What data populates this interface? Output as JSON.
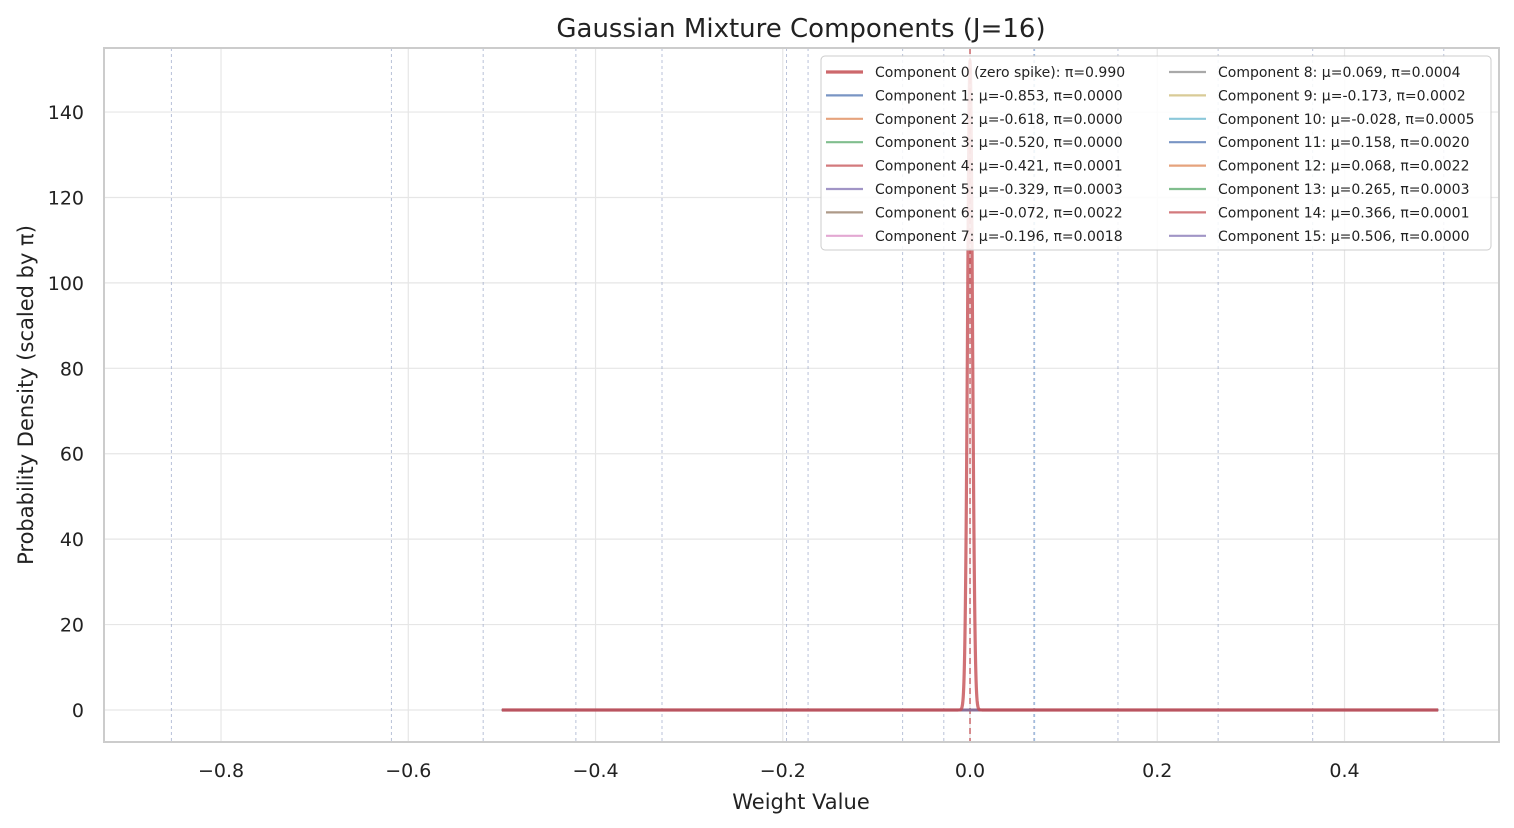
{
  "chart_data": {
    "type": "line",
    "title": "Gaussian Mixture Components (J=16)",
    "xlabel": "Weight Value",
    "ylabel": "Probability Density (scaled by π)",
    "xlim": [
      -0.925,
      0.565
    ],
    "ylim": [
      -7.5,
      155
    ],
    "x_range_plotted": [
      -0.5,
      0.5
    ],
    "x_ticks": [
      -0.8,
      -0.6,
      -0.4,
      -0.2,
      0.0,
      0.2,
      0.4
    ],
    "x_tick_labels": [
      "−0.8",
      "−0.6",
      "−0.4",
      "−0.2",
      "0.0",
      "0.2",
      "0.4"
    ],
    "y_ticks": [
      0,
      20,
      40,
      60,
      80,
      100,
      120,
      140
    ],
    "y_tick_labels": [
      "0",
      "20",
      "40",
      "60",
      "80",
      "100",
      "120",
      "140"
    ],
    "grid": true,
    "legend_position": "upper right",
    "legend_columns": 2,
    "zero_spike": {
      "mu": 0.0,
      "sigma": 0.0026,
      "peak_density": 152
    },
    "series": [
      {
        "name": "Component 0 (zero spike): π=0.990",
        "mu": 0.0,
        "pi": 0.99,
        "color": "#c44e52",
        "bold": true
      },
      {
        "name": "Component 1: μ=-0.853, π=0.0000",
        "mu": -0.853,
        "pi": 0.0,
        "color": "#4c72b0"
      },
      {
        "name": "Component 2: μ=-0.618, π=0.0000",
        "mu": -0.618,
        "pi": 0.0,
        "color": "#dd8452"
      },
      {
        "name": "Component 3: μ=-0.520, π=0.0000",
        "mu": -0.52,
        "pi": 0.0,
        "color": "#55a868"
      },
      {
        "name": "Component 4: μ=-0.421, π=0.0001",
        "mu": -0.421,
        "pi": 0.0001,
        "color": "#c44e52"
      },
      {
        "name": "Component 5: μ=-0.329, π=0.0003",
        "mu": -0.329,
        "pi": 0.0003,
        "color": "#8172b3"
      },
      {
        "name": "Component 6: μ=-0.072, π=0.0022",
        "mu": -0.072,
        "pi": 0.0022,
        "color": "#937860"
      },
      {
        "name": "Component 7: μ=-0.196, π=0.0018",
        "mu": -0.196,
        "pi": 0.0018,
        "color": "#da8bc3"
      },
      {
        "name": "Component 8: μ=0.069, π=0.0004",
        "mu": 0.069,
        "pi": 0.0004,
        "color": "#8c8c8c"
      },
      {
        "name": "Component 9: μ=-0.173, π=0.0002",
        "mu": -0.173,
        "pi": 0.0002,
        "color": "#ccb974"
      },
      {
        "name": "Component 10: μ=-0.028, π=0.0005",
        "mu": -0.028,
        "pi": 0.0005,
        "color": "#64b5cd"
      },
      {
        "name": "Component 11: μ=0.158, π=0.0020",
        "mu": 0.158,
        "pi": 0.002,
        "color": "#4c72b0"
      },
      {
        "name": "Component 12: μ=0.068, π=0.0022",
        "mu": 0.068,
        "pi": 0.0022,
        "color": "#dd8452"
      },
      {
        "name": "Component 13: μ=0.265, π=0.0003",
        "mu": 0.265,
        "pi": 0.0003,
        "color": "#55a868"
      },
      {
        "name": "Component 14: μ=0.366, π=0.0001",
        "mu": 0.366,
        "pi": 0.0001,
        "color": "#c44e52"
      },
      {
        "name": "Component 15: μ=0.506, π=0.0000",
        "mu": 0.506,
        "pi": 0.0,
        "color": "#8172b3"
      }
    ],
    "vlines": {
      "zero_spike_color": "#c44e52",
      "component_color": "#9aa6c8",
      "highlight_mu": 0.069,
      "highlight_color": "#6a9bd1"
    },
    "baseline_color": "#8a6d95",
    "colors": {
      "grid": "#e6e6e6",
      "spine": "#cccccc",
      "background": "#ffffff"
    }
  }
}
